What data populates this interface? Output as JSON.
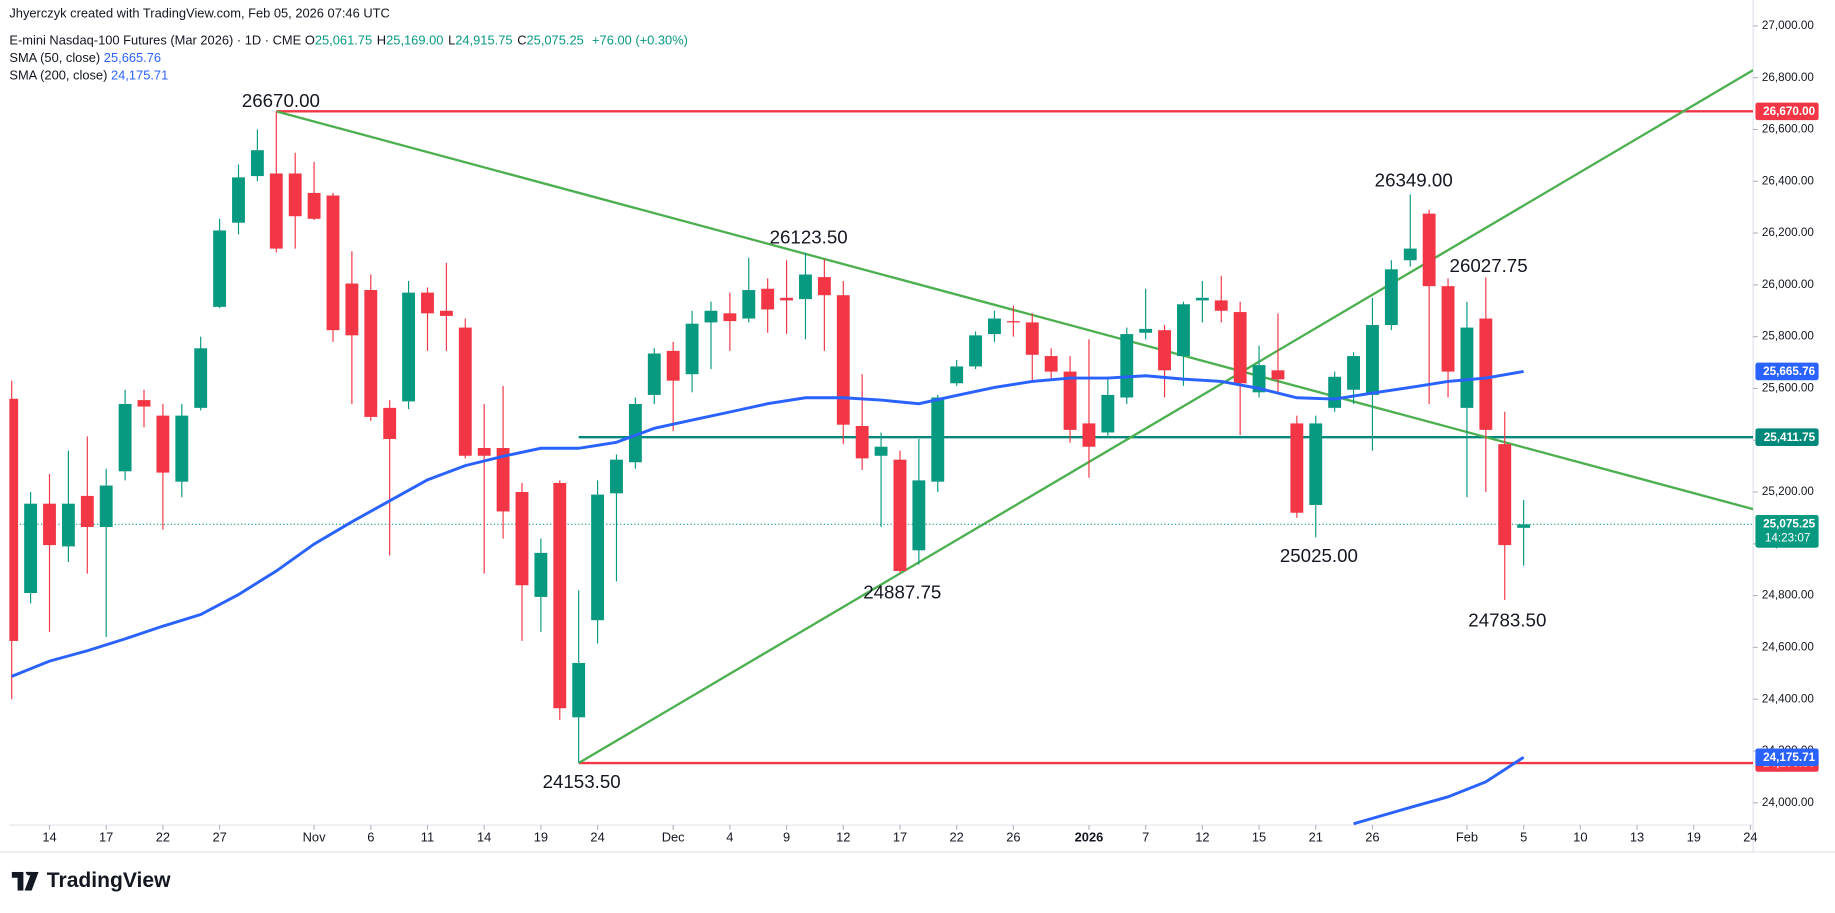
{
  "chart_data": {
    "type": "candlestick",
    "header": {
      "credit": "Jhyerczyk created with TradingView.com, Feb 05, 2026 07:46 UTC",
      "symbol": "E-mini Nasdaq-100 Futures (Mar 2026) · 1D · CME",
      "ohlc": [
        {
          "key": "O",
          "value": "25,061.75"
        },
        {
          "key": "H",
          "value": "25,169.00"
        },
        {
          "key": "L",
          "value": "24,915.75"
        },
        {
          "key": "C",
          "value": "25,075.25"
        }
      ],
      "change": "+76.00 (+0.30%)",
      "brand": "TradingView"
    },
    "up_color": "#089981",
    "down_color": "#f23645",
    "x": [
      0,
      1,
      2,
      3,
      4,
      5,
      6,
      7,
      8,
      9,
      10,
      11,
      12,
      13,
      14,
      15,
      16,
      17,
      18,
      19,
      20,
      21,
      22,
      23,
      24,
      25,
      26,
      27,
      28,
      29,
      30,
      31,
      32,
      33,
      34,
      35,
      36,
      37,
      38,
      39,
      40,
      41,
      42,
      43,
      44,
      45,
      46,
      47,
      48,
      49,
      50,
      51,
      52,
      53,
      54,
      55,
      56,
      57,
      58,
      59,
      60,
      61,
      62,
      63,
      64,
      65,
      66,
      67,
      68,
      69,
      70,
      71,
      72,
      73,
      74,
      75,
      76,
      77,
      78,
      79,
      80
    ],
    "open": [
      25560,
      24810,
      25155,
      24990,
      25185,
      25065,
      25280,
      25555,
      25495,
      25240,
      25525,
      25915,
      26240,
      26420,
      26430,
      26430,
      26355,
      26345,
      26005,
      25980,
      25525,
      25550,
      25970,
      25900,
      25835,
      25370,
      25370,
      25200,
      24795,
      25235,
      24330,
      24705,
      25195,
      25315,
      25575,
      25745,
      25655,
      25855,
      25890,
      25870,
      25985,
      25950,
      25945,
      26030,
      25960,
      25455,
      25340,
      25325,
      24975,
      25240,
      25620,
      25685,
      25810,
      25860,
      25855,
      25725,
      25665,
      25465,
      25430,
      25565,
      25815,
      25825,
      25725,
      25940,
      25940,
      25895,
      25585,
      25670,
      25465,
      25150,
      25525,
      25595,
      25575,
      25845,
      26095,
      26275,
      25995,
      25525,
      25870,
      25385,
      25061.75
    ],
    "high": [
      25630,
      25200,
      25270,
      25360,
      25415,
      25290,
      25595,
      25595,
      25540,
      25540,
      25800,
      26255,
      26465,
      26600,
      26670,
      26510,
      26475,
      26355,
      26130,
      26040,
      25555,
      26015,
      25990,
      26085,
      25870,
      25540,
      25610,
      25235,
      25020,
      25245,
      24820,
      25245,
      25345,
      25565,
      25755,
      25780,
      25900,
      25935,
      25970,
      26105,
      26025,
      26095,
      26123.5,
      26100,
      26015,
      25655,
      25430,
      25360,
      25405,
      25575,
      25710,
      25820,
      25900,
      25920,
      25890,
      25755,
      25725,
      25790,
      25645,
      25835,
      25985,
      25845,
      25935,
      26015,
      26035,
      25935,
      25765,
      25890,
      25495,
      25495,
      25665,
      25740,
      25950,
      26095,
      26349,
      26290,
      26025,
      25935,
      26027.75,
      25510,
      25169
    ],
    "low": [
      24400,
      24770,
      24660,
      24930,
      24885,
      24640,
      25245,
      25450,
      25055,
      25180,
      25515,
      25910,
      26195,
      26400,
      26125,
      26140,
      26250,
      25780,
      25540,
      25475,
      24955,
      25520,
      25745,
      25745,
      25330,
      24885,
      25020,
      24625,
      24660,
      24320,
      24153.5,
      24615,
      24855,
      25290,
      25540,
      25435,
      25585,
      25675,
      25745,
      25855,
      25815,
      25810,
      25790,
      25745,
      25385,
      25285,
      25065,
      24887.75,
      24920,
      25200,
      25610,
      25675,
      25780,
      25800,
      25630,
      25630,
      25390,
      25255,
      25410,
      25540,
      25790,
      25565,
      25610,
      25855,
      25855,
      25420,
      25565,
      25585,
      25100,
      25025,
      25510,
      25540,
      25360,
      25825,
      26070,
      25540,
      25565,
      25180,
      25200,
      24783.5,
      24915.75
    ],
    "close": [
      24625,
      25155,
      24995,
      25155,
      25065,
      25225,
      25540,
      25530,
      25275,
      25495,
      25755,
      26210,
      26415,
      26520,
      26140,
      26265,
      26255,
      25825,
      25805,
      25490,
      25405,
      25970,
      25890,
      25880,
      25340,
      25340,
      25125,
      24840,
      24965,
      24365,
      24540,
      25190,
      25325,
      25540,
      25735,
      25630,
      25850,
      25900,
      25860,
      25980,
      25905,
      25940,
      26040,
      25960,
      25460,
      25330,
      25375,
      24895,
      25245,
      25565,
      25685,
      25805,
      25870,
      25855,
      25730,
      25665,
      25440,
      25375,
      25575,
      25810,
      25830,
      25670,
      25925,
      25950,
      25900,
      25620,
      25690,
      25635,
      25120,
      25465,
      25645,
      25725,
      25845,
      26060,
      26140,
      25995,
      25665,
      25835,
      25440,
      24995,
      25075.25
    ],
    "series": [
      {
        "name": "SMA (50, close)",
        "color": "#2962ff",
        "value_label": "25,665.76",
        "x": [
          0,
          2,
          4,
          6,
          8,
          10,
          12,
          14,
          16,
          18,
          20,
          22,
          24,
          26,
          28,
          30,
          32,
          34,
          36,
          38,
          40,
          42,
          44,
          46,
          48,
          50,
          52,
          54,
          56,
          58,
          60,
          62,
          64,
          66,
          68,
          70,
          72,
          74,
          76,
          78,
          80
        ],
        "values": [
          24488,
          24547,
          24587,
          24633,
          24682,
          24727,
          24804,
          24895,
          24999,
          25085,
          25166,
          25247,
          25302,
          25338,
          25369,
          25369,
          25392,
          25446,
          25478,
          25509,
          25541,
          25564,
          25564,
          25555,
          25541,
          25573,
          25604,
          25627,
          25640,
          25640,
          25649,
          25636,
          25627,
          25600,
          25564,
          25559,
          25582,
          25604,
          25627,
          25640,
          25665.76
        ]
      },
      {
        "name": "SMA (200, close)",
        "color": "#2962ff",
        "value_label": "24,175.71",
        "x": [
          71,
          74,
          76,
          78,
          80
        ],
        "values": [
          23919,
          23982,
          24023,
          24081,
          24175.71
        ]
      }
    ],
    "levels": [
      {
        "value": 26670,
        "label": "26,670.00",
        "color": "#f23645",
        "from": 14
      },
      {
        "value": 25411.75,
        "label": "25,411.75",
        "color": "#00897b",
        "from": 30
      },
      {
        "value": 24153.5,
        "label": "24,153.50",
        "color": "#f23645",
        "from": 30
      }
    ],
    "trendlines": [
      {
        "color": "#4caf50",
        "x": [
          14,
          92.14
        ],
        "values": [
          26670,
          25134
        ]
      },
      {
        "color": "#4caf50",
        "x": [
          30,
          92.14
        ],
        "values": [
          24153.5,
          26829
        ]
      }
    ],
    "last_price": {
      "label": "25,075.25",
      "countdown": "14:23:07",
      "color": "#089981"
    },
    "annotations": [
      {
        "text": "26670.00",
        "value": 26670
      },
      {
        "text": "26123.50",
        "value": 26123.5
      },
      {
        "text": "26349.00",
        "value": 26349
      },
      {
        "text": "26027.75",
        "value": 26027.75
      },
      {
        "text": "25025.00",
        "value": 25025
      },
      {
        "text": "24887.75",
        "value": 24887.75
      },
      {
        "text": "24783.50",
        "value": 24783.5
      },
      {
        "text": "24153.50",
        "value": 24153.5
      }
    ],
    "xlim": [
      -0.124,
      92.14
    ],
    "ylim": [
      23914,
      27100
    ],
    "xticks": [
      {
        "value": 2,
        "label": "14"
      },
      {
        "value": 5,
        "label": "17"
      },
      {
        "value": 8,
        "label": "22"
      },
      {
        "value": 11,
        "label": "27"
      },
      {
        "value": 16,
        "label": "Nov"
      },
      {
        "value": 19,
        "label": "6"
      },
      {
        "value": 22,
        "label": "11"
      },
      {
        "value": 25,
        "label": "14"
      },
      {
        "value": 28,
        "label": "19"
      },
      {
        "value": 31,
        "label": "24"
      },
      {
        "value": 35,
        "label": "Dec"
      },
      {
        "value": 38,
        "label": "4"
      },
      {
        "value": 41,
        "label": "9"
      },
      {
        "value": 44,
        "label": "12"
      },
      {
        "value": 47,
        "label": "17"
      },
      {
        "value": 50,
        "label": "22"
      },
      {
        "value": 53,
        "label": "26"
      },
      {
        "value": 57,
        "label": "2026",
        "bold": true
      },
      {
        "value": 60,
        "label": "7"
      },
      {
        "value": 63,
        "label": "12"
      },
      {
        "value": 66,
        "label": "15"
      },
      {
        "value": 69,
        "label": "21"
      },
      {
        "value": 72,
        "label": "26"
      },
      {
        "value": 77,
        "label": "Feb"
      },
      {
        "value": 80,
        "label": "5"
      },
      {
        "value": 83,
        "label": "10"
      },
      {
        "value": 86,
        "label": "13"
      },
      {
        "value": 89,
        "label": "19"
      },
      {
        "value": 92,
        "label": "24"
      }
    ],
    "yticks": [
      {
        "value": 24000,
        "label": "24,000.00"
      },
      {
        "value": 24200,
        "label": "24,200.00"
      },
      {
        "value": 24400,
        "label": "24,400.00"
      },
      {
        "value": 24600,
        "label": "24,600.00"
      },
      {
        "value": 24800,
        "label": "24,800.00"
      },
      {
        "value": 25000,
        "label": "25,000.00"
      },
      {
        "value": 25200,
        "label": "25,200.00"
      },
      {
        "value": 25400,
        "label": "25,400.00"
      },
      {
        "value": 25600,
        "label": "25,600.00"
      },
      {
        "value": 25800,
        "label": "25,800.00"
      },
      {
        "value": 26000,
        "label": "26,000.00"
      },
      {
        "value": 26200,
        "label": "26,200.00"
      },
      {
        "value": 26400,
        "label": "26,400.00"
      },
      {
        "value": 26600,
        "label": "26,600.00"
      },
      {
        "value": 26800,
        "label": "26,800.00"
      },
      {
        "value": 27000,
        "label": "27,000.00"
      }
    ],
    "grid": false
  }
}
